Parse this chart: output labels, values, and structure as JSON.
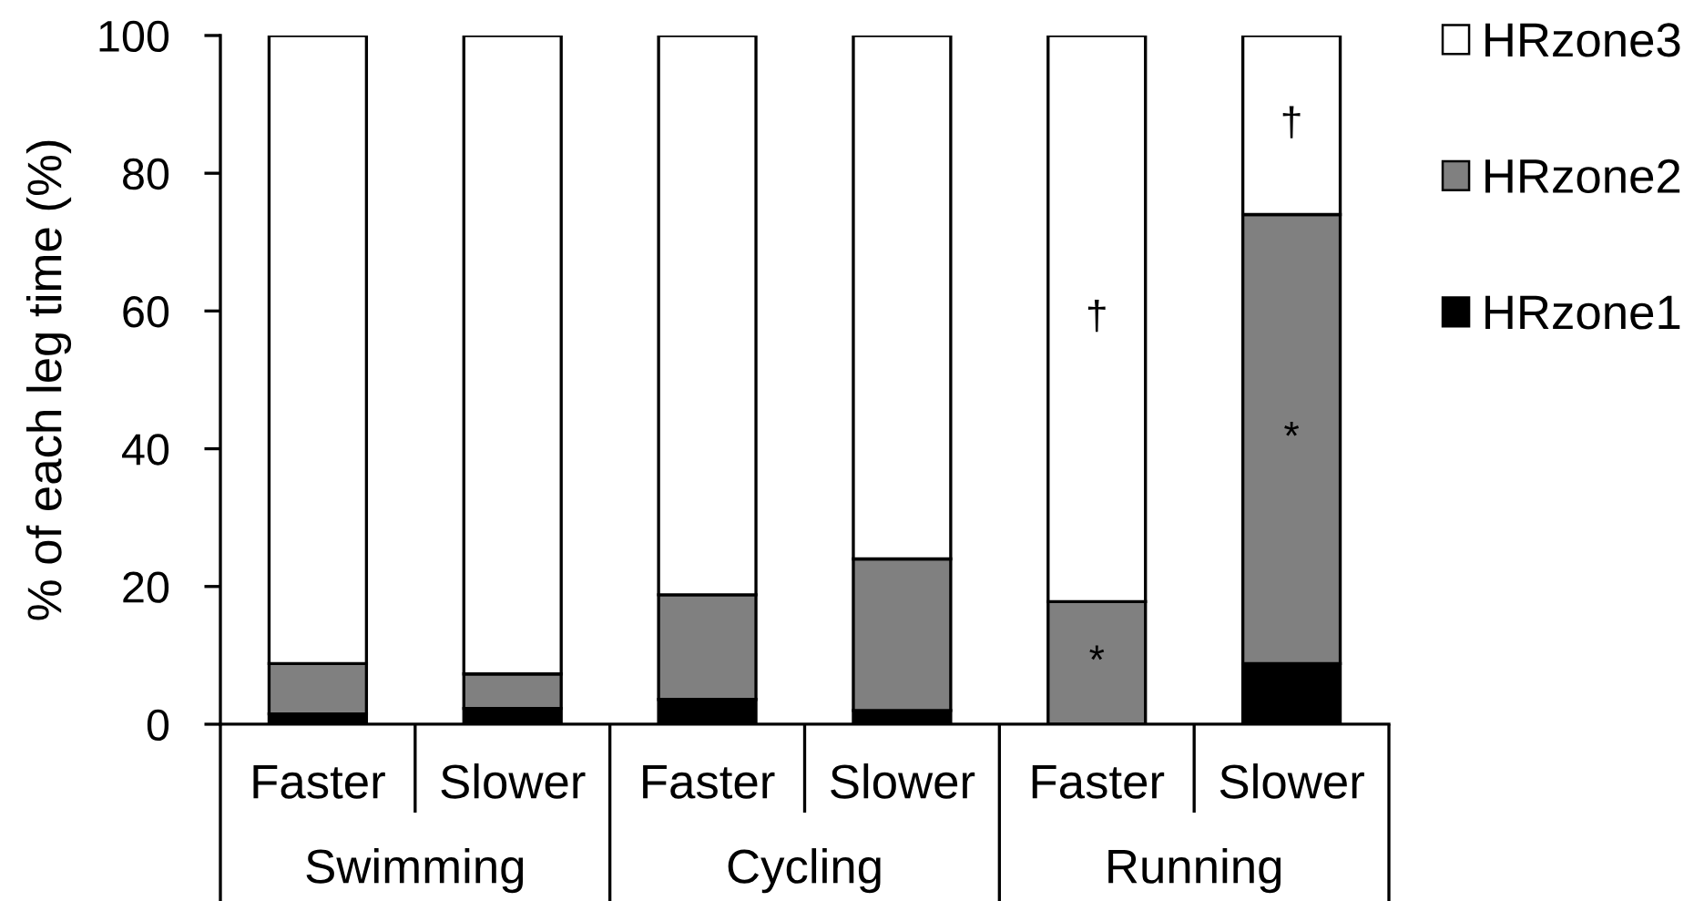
{
  "chart_data": {
    "type": "bar",
    "stacked": true,
    "ylabel": "% of each leg time (%)",
    "categories": [
      "Faster",
      "Slower",
      "Faster",
      "Slower",
      "Faster",
      "Slower"
    ],
    "series": [
      {
        "name": "HRzone1",
        "color": "#000000",
        "values": [
          1.5,
          2.3,
          3.6,
          2.0,
          0,
          8.8
        ]
      },
      {
        "name": "HRzone2",
        "color": "#808080",
        "values": [
          7.3,
          5.0,
          15.2,
          22.0,
          17.8,
          65.2
        ],
        "value_labels": [
          null,
          null,
          null,
          null,
          "*",
          "*"
        ]
      },
      {
        "name": "HRzone3",
        "color": "#ffffff",
        "values": [
          91.2,
          92.7,
          81.2,
          76.0,
          82.2,
          26.0
        ],
        "value_labels": [
          null,
          null,
          null,
          null,
          "†",
          "†"
        ]
      }
    ],
    "ylim": [
      0,
      100
    ],
    "yticks": [
      0,
      20,
      40,
      60,
      80,
      100
    ],
    "legend": "top right",
    "annotations": [
      "Swimming",
      "Cycling",
      "Running"
    ]
  }
}
